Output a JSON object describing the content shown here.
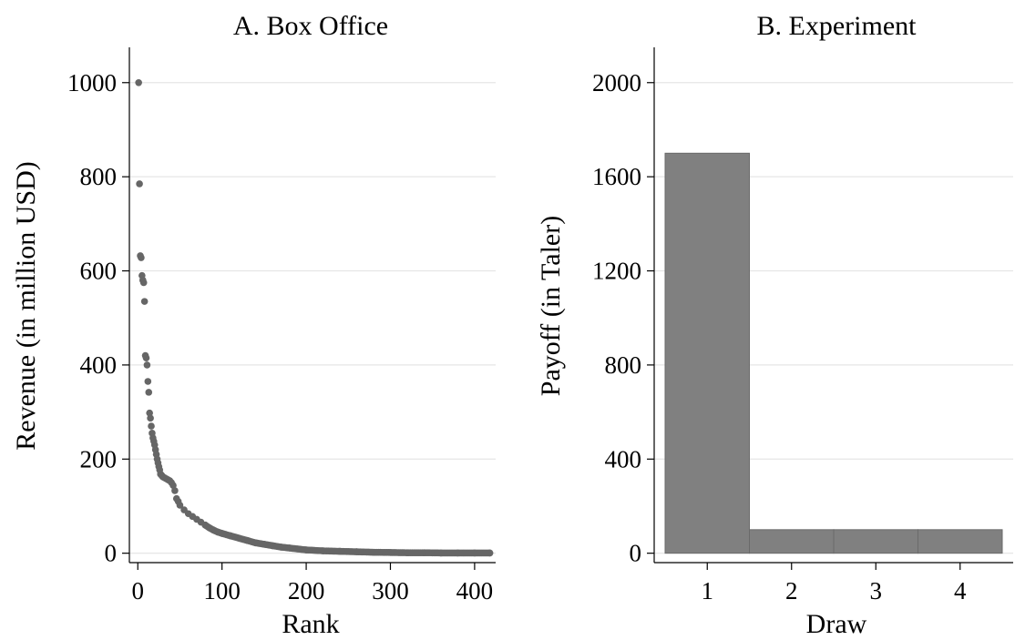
{
  "chart_data": [
    {
      "type": "scatter",
      "title": "A. Box Office",
      "xlabel": "Rank",
      "ylabel": "Revenue (in million USD)",
      "xlim": [
        -10,
        425
      ],
      "ylim": [
        -20,
        1075
      ],
      "xticks": [
        0,
        100,
        200,
        300,
        400
      ],
      "yticks": [
        0,
        200,
        400,
        600,
        800,
        1000
      ],
      "grid": true,
      "legend": "none",
      "point_color": "#666666",
      "x": [
        1,
        2,
        3,
        4,
        5,
        6,
        7,
        8,
        9,
        10,
        11,
        12,
        13,
        14,
        15,
        16,
        17,
        18,
        19,
        20,
        21,
        22,
        23,
        24,
        25,
        26,
        27,
        28,
        29,
        30,
        32,
        34,
        36,
        38,
        40,
        42,
        44,
        46,
        48,
        50,
        55,
        60,
        65,
        70,
        75,
        80,
        85,
        90,
        95,
        100,
        110,
        120,
        130,
        140,
        150,
        160,
        170,
        180,
        190,
        200,
        220,
        240,
        260,
        280,
        300,
        320,
        340,
        360,
        380,
        400,
        418
      ],
      "y": [
        1000,
        785,
        632,
        628,
        590,
        580,
        575,
        535,
        420,
        415,
        400,
        365,
        342,
        298,
        287,
        270,
        255,
        245,
        238,
        230,
        220,
        210,
        200,
        192,
        184,
        177,
        168,
        166,
        164,
        162,
        160,
        158,
        156,
        154,
        150,
        144,
        133,
        116,
        110,
        102,
        92,
        84,
        78,
        72,
        66,
        60,
        54,
        49,
        45,
        42,
        37,
        32,
        27,
        22,
        19,
        16,
        13,
        11,
        9,
        7,
        5,
        4,
        3,
        2,
        1.5,
        1,
        1,
        0.5,
        0.5,
        0.5,
        0.5
      ]
    },
    {
      "type": "bar",
      "title": "B. Experiment",
      "xlabel": "Draw",
      "ylabel": "Payoff (in Taler)",
      "categories": [
        "1",
        "2",
        "3",
        "4"
      ],
      "values": [
        1700,
        100,
        100,
        100
      ],
      "ylim": [
        -40,
        2150
      ],
      "yticks": [
        0,
        400,
        800,
        1200,
        1600,
        2000
      ],
      "grid": true,
      "legend": "none",
      "bar_color": "#808080",
      "bar_edge_color": "#6a6a6a"
    }
  ]
}
